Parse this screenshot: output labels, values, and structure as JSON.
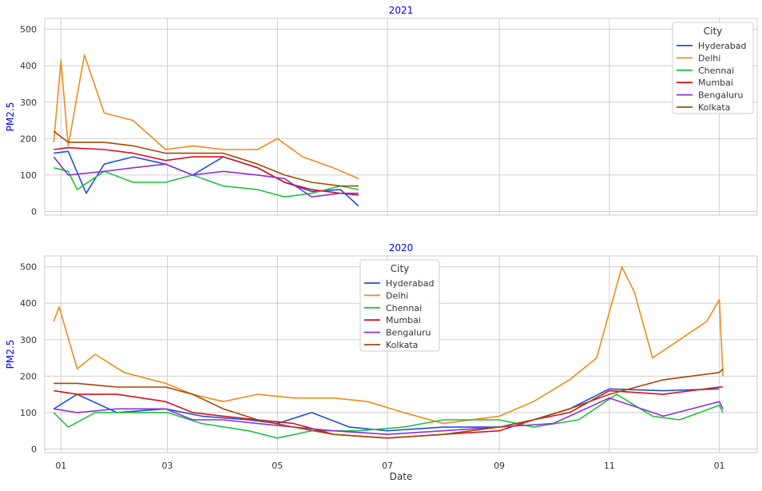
{
  "chart_data": [
    {
      "type": "line",
      "title": "2021",
      "ylabel": "PM2.5",
      "xlabel": "",
      "ylim": [
        -10,
        530
      ],
      "yticks": [
        0,
        100,
        200,
        300,
        400,
        500
      ],
      "x_range": [
        "2020-12-23",
        "2022-01-22"
      ],
      "grid": true,
      "legend": {
        "title": "City",
        "placement": "top-right"
      },
      "x_shared_with_panel_below": true,
      "series": [
        {
          "name": "Hyderabad",
          "color": "#1f4fe0",
          "points": [
            [
              "2020-12-28",
              160
            ],
            [
              "2021-01-05",
              165
            ],
            [
              "2021-01-15",
              50
            ],
            [
              "2021-01-25",
              130
            ],
            [
              "2021-02-10",
              150
            ],
            [
              "2021-02-28",
              130
            ],
            [
              "2021-03-15",
              100
            ],
            [
              "2021-04-01",
              150
            ],
            [
              "2021-04-20",
              120
            ],
            [
              "2021-05-05",
              80
            ],
            [
              "2021-05-20",
              55
            ],
            [
              "2021-06-05",
              60
            ],
            [
              "2021-06-15",
              15
            ]
          ]
        },
        {
          "name": "Delhi",
          "color": "#f08a1a",
          "points": [
            [
              "2020-12-28",
              190
            ],
            [
              "2021-01-01",
              415
            ],
            [
              "2021-01-05",
              180
            ],
            [
              "2021-01-14",
              430
            ],
            [
              "2021-01-25",
              270
            ],
            [
              "2021-02-10",
              250
            ],
            [
              "2021-02-28",
              170
            ],
            [
              "2021-03-15",
              180
            ],
            [
              "2021-04-01",
              170
            ],
            [
              "2021-04-20",
              170
            ],
            [
              "2021-05-01",
              200
            ],
            [
              "2021-05-15",
              150
            ],
            [
              "2021-06-01",
              120
            ],
            [
              "2021-06-15",
              90
            ]
          ]
        },
        {
          "name": "Chennai",
          "color": "#1fc13f",
          "points": [
            [
              "2020-12-28",
              120
            ],
            [
              "2021-01-05",
              110
            ],
            [
              "2021-01-10",
              60
            ],
            [
              "2021-01-25",
              110
            ],
            [
              "2021-02-10",
              80
            ],
            [
              "2021-02-28",
              80
            ],
            [
              "2021-03-15",
              100
            ],
            [
              "2021-04-01",
              70
            ],
            [
              "2021-04-20",
              60
            ],
            [
              "2021-05-05",
              40
            ],
            [
              "2021-05-20",
              50
            ],
            [
              "2021-06-05",
              70
            ],
            [
              "2021-06-15",
              60
            ]
          ]
        },
        {
          "name": "Mumbai",
          "color": "#d8111b",
          "points": [
            [
              "2020-12-28",
              170
            ],
            [
              "2021-01-05",
              175
            ],
            [
              "2021-01-25",
              170
            ],
            [
              "2021-02-10",
              160
            ],
            [
              "2021-02-28",
              140
            ],
            [
              "2021-03-15",
              150
            ],
            [
              "2021-04-01",
              150
            ],
            [
              "2021-04-20",
              120
            ],
            [
              "2021-05-05",
              80
            ],
            [
              "2021-05-20",
              60
            ],
            [
              "2021-06-05",
              50
            ],
            [
              "2021-06-15",
              45
            ]
          ]
        },
        {
          "name": "Bengaluru",
          "color": "#8b33d6",
          "points": [
            [
              "2020-12-28",
              150
            ],
            [
              "2021-01-05",
              100
            ],
            [
              "2021-01-25",
              110
            ],
            [
              "2021-02-10",
              120
            ],
            [
              "2021-02-28",
              130
            ],
            [
              "2021-03-15",
              100
            ],
            [
              "2021-04-01",
              110
            ],
            [
              "2021-04-20",
              100
            ],
            [
              "2021-05-05",
              90
            ],
            [
              "2021-05-20",
              40
            ],
            [
              "2021-06-05",
              50
            ],
            [
              "2021-06-15",
              50
            ]
          ]
        },
        {
          "name": "Kolkata",
          "color": "#a04a05",
          "points": [
            [
              "2020-12-28",
              220
            ],
            [
              "2021-01-05",
              190
            ],
            [
              "2021-01-25",
              190
            ],
            [
              "2021-02-10",
              180
            ],
            [
              "2021-02-28",
              160
            ],
            [
              "2021-03-15",
              160
            ],
            [
              "2021-04-01",
              160
            ],
            [
              "2021-04-20",
              130
            ],
            [
              "2021-05-05",
              100
            ],
            [
              "2021-05-20",
              80
            ],
            [
              "2021-06-05",
              70
            ],
            [
              "2021-06-15",
              70
            ]
          ]
        }
      ]
    },
    {
      "type": "line",
      "title": "2020",
      "ylabel": "PM2.5",
      "xlabel": "Date",
      "ylim": [
        -10,
        530
      ],
      "yticks": [
        0,
        100,
        200,
        300,
        400,
        500
      ],
      "x_range": [
        "2020-12-23",
        "2022-01-22"
      ],
      "xticks": [
        {
          "date": "2021-01-01",
          "label": "01"
        },
        {
          "date": "2021-03-01",
          "label": "03"
        },
        {
          "date": "2021-05-01",
          "label": "05"
        },
        {
          "date": "2021-07-01",
          "label": "07"
        },
        {
          "date": "2021-09-01",
          "label": "09"
        },
        {
          "date": "2021-11-01",
          "label": "11"
        },
        {
          "date": "2022-01-01",
          "label": "01"
        }
      ],
      "grid": true,
      "legend": {
        "title": "City",
        "placement": "top-center"
      },
      "series": [
        {
          "name": "Hyderabad",
          "color": "#1f4fe0",
          "points": [
            [
              "2020-12-28",
              110
            ],
            [
              "2021-01-10",
              150
            ],
            [
              "2021-02-01",
              100
            ],
            [
              "2021-02-28",
              110
            ],
            [
              "2021-03-20",
              90
            ],
            [
              "2021-04-15",
              80
            ],
            [
              "2021-05-01",
              70
            ],
            [
              "2021-05-20",
              100
            ],
            [
              "2021-06-10",
              60
            ],
            [
              "2021-07-01",
              50
            ],
            [
              "2021-08-01",
              60
            ],
            [
              "2021-09-01",
              60
            ],
            [
              "2021-09-20",
              80
            ],
            [
              "2021-10-10",
              110
            ],
            [
              "2021-11-01",
              165
            ],
            [
              "2021-12-01",
              160
            ],
            [
              "2022-01-01",
              165
            ]
          ]
        },
        {
          "name": "Delhi",
          "color": "#f08a1a",
          "points": [
            [
              "2020-12-28",
              350
            ],
            [
              "2020-12-31",
              390
            ],
            [
              "2021-01-10",
              220
            ],
            [
              "2021-01-20",
              260
            ],
            [
              "2021-02-05",
              210
            ],
            [
              "2021-02-28",
              180
            ],
            [
              "2021-03-15",
              150
            ],
            [
              "2021-04-01",
              130
            ],
            [
              "2021-04-20",
              150
            ],
            [
              "2021-05-10",
              140
            ],
            [
              "2021-06-01",
              140
            ],
            [
              "2021-06-20",
              130
            ],
            [
              "2021-07-10",
              100
            ],
            [
              "2021-08-01",
              70
            ],
            [
              "2021-09-01",
              90
            ],
            [
              "2021-09-20",
              130
            ],
            [
              "2021-10-10",
              190
            ],
            [
              "2021-10-25",
              250
            ],
            [
              "2021-11-08",
              500
            ],
            [
              "2021-11-15",
              430
            ],
            [
              "2021-11-25",
              250
            ],
            [
              "2021-12-10",
              300
            ],
            [
              "2021-12-25",
              350
            ],
            [
              "2022-01-01",
              410
            ],
            [
              "2022-01-03",
              200
            ]
          ]
        },
        {
          "name": "Chennai",
          "color": "#1fc13f",
          "points": [
            [
              "2020-12-28",
              100
            ],
            [
              "2021-01-05",
              60
            ],
            [
              "2021-01-20",
              100
            ],
            [
              "2021-02-10",
              100
            ],
            [
              "2021-03-01",
              100
            ],
            [
              "2021-03-20",
              70
            ],
            [
              "2021-04-15",
              50
            ],
            [
              "2021-05-01",
              30
            ],
            [
              "2021-05-20",
              50
            ],
            [
              "2021-06-15",
              50
            ],
            [
              "2021-07-10",
              60
            ],
            [
              "2021-08-01",
              80
            ],
            [
              "2021-09-01",
              80
            ],
            [
              "2021-09-20",
              60
            ],
            [
              "2021-10-15",
              80
            ],
            [
              "2021-11-05",
              150
            ],
            [
              "2021-11-25",
              90
            ],
            [
              "2021-12-10",
              80
            ],
            [
              "2022-01-01",
              120
            ],
            [
              "2022-01-03",
              100
            ]
          ]
        },
        {
          "name": "Mumbai",
          "color": "#d8111b",
          "points": [
            [
              "2020-12-28",
              160
            ],
            [
              "2021-01-10",
              150
            ],
            [
              "2021-02-01",
              150
            ],
            [
              "2021-02-28",
              130
            ],
            [
              "2021-03-15",
              100
            ],
            [
              "2021-04-01",
              90
            ],
            [
              "2021-04-20",
              80
            ],
            [
              "2021-05-10",
              70
            ],
            [
              "2021-06-01",
              40
            ],
            [
              "2021-07-01",
              30
            ],
            [
              "2021-08-01",
              40
            ],
            [
              "2021-09-01",
              50
            ],
            [
              "2021-09-20",
              80
            ],
            [
              "2021-10-10",
              100
            ],
            [
              "2021-11-01",
              160
            ],
            [
              "2021-12-01",
              150
            ],
            [
              "2022-01-01",
              170
            ],
            [
              "2022-01-03",
              170
            ]
          ]
        },
        {
          "name": "Bengaluru",
          "color": "#8b33d6",
          "points": [
            [
              "2020-12-28",
              110
            ],
            [
              "2021-01-10",
              100
            ],
            [
              "2021-02-01",
              110
            ],
            [
              "2021-02-28",
              110
            ],
            [
              "2021-03-15",
              80
            ],
            [
              "2021-04-01",
              80
            ],
            [
              "2021-04-20",
              70
            ],
            [
              "2021-05-10",
              60
            ],
            [
              "2021-06-01",
              50
            ],
            [
              "2021-07-01",
              40
            ],
            [
              "2021-08-01",
              50
            ],
            [
              "2021-09-01",
              60
            ],
            [
              "2021-10-01",
              70
            ],
            [
              "2021-11-01",
              140
            ],
            [
              "2021-12-01",
              90
            ],
            [
              "2022-01-01",
              130
            ],
            [
              "2022-01-03",
              110
            ]
          ]
        },
        {
          "name": "Kolkata",
          "color": "#a04a05",
          "points": [
            [
              "2020-12-28",
              180
            ],
            [
              "2021-01-10",
              180
            ],
            [
              "2021-02-01",
              170
            ],
            [
              "2021-02-28",
              170
            ],
            [
              "2021-03-15",
              150
            ],
            [
              "2021-04-01",
              110
            ],
            [
              "2021-04-20",
              80
            ],
            [
              "2021-05-10",
              60
            ],
            [
              "2021-06-01",
              40
            ],
            [
              "2021-07-01",
              30
            ],
            [
              "2021-08-01",
              40
            ],
            [
              "2021-09-01",
              60
            ],
            [
              "2021-09-20",
              80
            ],
            [
              "2021-10-10",
              110
            ],
            [
              "2021-11-01",
              150
            ],
            [
              "2021-12-01",
              190
            ],
            [
              "2022-01-01",
              210
            ],
            [
              "2022-01-03",
              220
            ]
          ]
        }
      ]
    }
  ]
}
